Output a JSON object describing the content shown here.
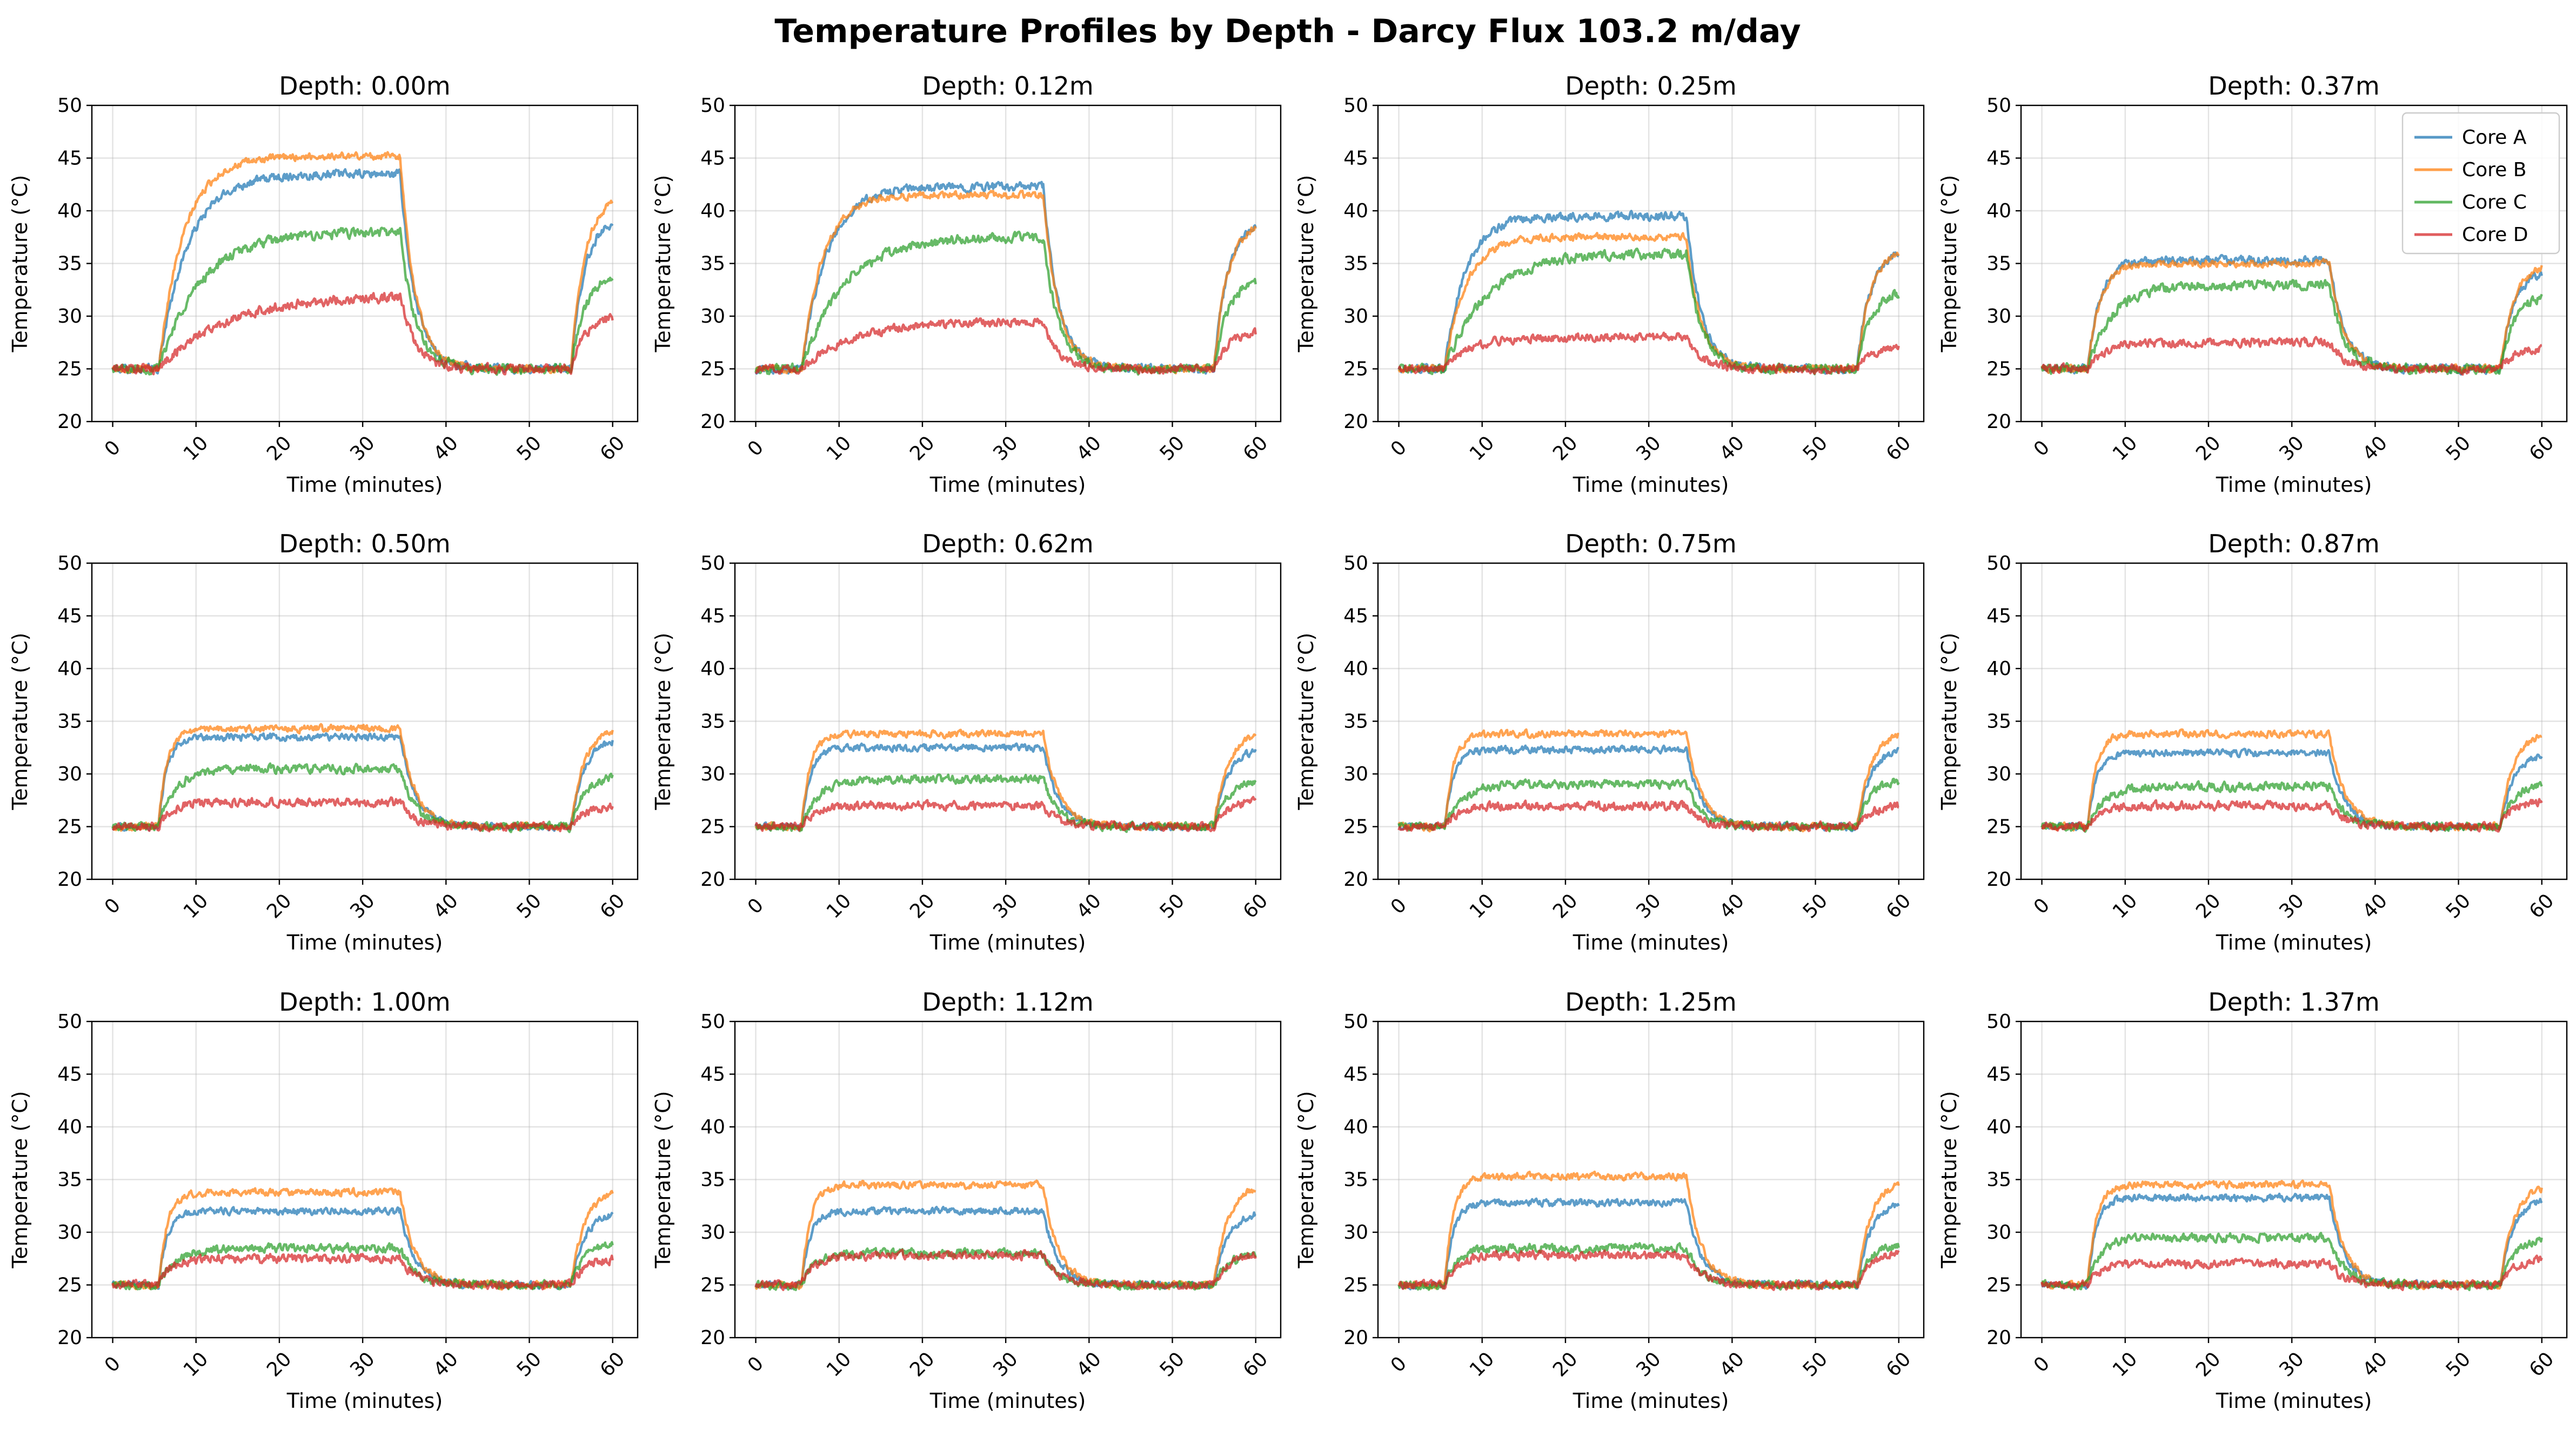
{
  "figure": {
    "title": "Temperature Profiles by Depth - Darcy Flux 103.2 m/day"
  },
  "chart_data": {
    "type": "line",
    "layout": "3x4 grid of line charts",
    "title": "Temperature Profiles by Depth - Darcy Flux 103.2 m/day",
    "xlabel": "Time (minutes)",
    "ylabel": "Temperature (°C)",
    "xlim": [
      -2.5,
      63
    ],
    "ylim": [
      20,
      50
    ],
    "xticks": [
      0,
      10,
      20,
      30,
      40,
      50,
      60
    ],
    "yticks": [
      20,
      25,
      30,
      35,
      40,
      45,
      50
    ],
    "x_tick_rotation": "45 degrees",
    "grid": true,
    "legend": {
      "position": "top-right of the fourth panel (Depth: 0.37m)",
      "entries": [
        "Core A",
        "Core B",
        "Core C",
        "Core D"
      ]
    },
    "series_colors": {
      "Core A": "#1f77b4",
      "Core B": "#ff7f0e",
      "Core C": "#2ca02c",
      "Core D": "#d62728"
    },
    "phases_minutes": {
      "baseline_end": 5.5,
      "heating_end": 34.5,
      "recovery_end": 55,
      "end": 60
    },
    "baseline_temperature": 25,
    "panels": [
      {
        "title": "Depth: 0.00m",
        "series": [
          {
            "name": "Core A",
            "plateau": 43.5,
            "tau": 3.5,
            "end": 39.5,
            "noise": 0.6
          },
          {
            "name": "Core B",
            "plateau": 45.2,
            "tau": 3.0,
            "end": 41.5,
            "noise": 0.5
          },
          {
            "name": "Core C",
            "plateau": 38.0,
            "tau": 5.0,
            "end": 34.0,
            "noise": 0.7
          },
          {
            "name": "Core D",
            "plateau": 32.0,
            "tau": 8.0,
            "end": 30.0,
            "noise": 0.7
          }
        ]
      },
      {
        "title": "Depth: 0.12m",
        "series": [
          {
            "name": "Core A",
            "plateau": 42.3,
            "tau": 3.0,
            "end": 39.0,
            "noise": 0.6
          },
          {
            "name": "Core B",
            "plateau": 41.5,
            "tau": 2.5,
            "end": 39.0,
            "noise": 0.5
          },
          {
            "name": "Core C",
            "plateau": 37.5,
            "tau": 5.0,
            "end": 33.5,
            "noise": 0.7
          },
          {
            "name": "Core D",
            "plateau": 29.5,
            "tau": 6.0,
            "end": 28.5,
            "noise": 0.6
          }
        ]
      },
      {
        "title": "Depth: 0.25m",
        "series": [
          {
            "name": "Core A",
            "plateau": 39.5,
            "tau": 2.5,
            "end": 36.5,
            "noise": 0.6
          },
          {
            "name": "Core B",
            "plateau": 37.5,
            "tau": 2.5,
            "end": 36.5,
            "noise": 0.5
          },
          {
            "name": "Core C",
            "plateau": 36.0,
            "tau": 5.0,
            "end": 32.5,
            "noise": 0.7
          },
          {
            "name": "Core D",
            "plateau": 28.0,
            "tau": 3.0,
            "end": 27.0,
            "noise": 0.6
          }
        ]
      },
      {
        "title": "Depth: 0.37m",
        "series": [
          {
            "name": "Core A",
            "plateau": 35.3,
            "tau": 1.5,
            "end": 34.5,
            "noise": 0.6
          },
          {
            "name": "Core B",
            "plateau": 35.0,
            "tau": 1.5,
            "end": 35.0,
            "noise": 0.5
          },
          {
            "name": "Core C",
            "plateau": 33.0,
            "tau": 3.0,
            "end": 32.0,
            "noise": 0.7
          },
          {
            "name": "Core D",
            "plateau": 27.5,
            "tau": 2.0,
            "end": 27.0,
            "noise": 0.6
          }
        ]
      },
      {
        "title": "Depth: 0.50m",
        "series": [
          {
            "name": "Core A",
            "plateau": 33.5,
            "tau": 1.0,
            "end": 33.5,
            "noise": 0.5
          },
          {
            "name": "Core B",
            "plateau": 34.3,
            "tau": 1.0,
            "end": 34.5,
            "noise": 0.5
          },
          {
            "name": "Core C",
            "plateau": 30.5,
            "tau": 2.0,
            "end": 30.0,
            "noise": 0.6
          },
          {
            "name": "Core D",
            "plateau": 27.3,
            "tau": 1.5,
            "end": 27.0,
            "noise": 0.6
          }
        ]
      },
      {
        "title": "Depth: 0.62m",
        "series": [
          {
            "name": "Core A",
            "plateau": 32.5,
            "tau": 1.0,
            "end": 32.5,
            "noise": 0.5
          },
          {
            "name": "Core B",
            "plateau": 33.8,
            "tau": 1.0,
            "end": 34.0,
            "noise": 0.5
          },
          {
            "name": "Core C",
            "plateau": 29.5,
            "tau": 2.0,
            "end": 29.5,
            "noise": 0.6
          },
          {
            "name": "Core D",
            "plateau": 27.0,
            "tau": 1.5,
            "end": 27.5,
            "noise": 0.6
          }
        ]
      },
      {
        "title": "Depth: 0.75m",
        "series": [
          {
            "name": "Core A",
            "plateau": 32.3,
            "tau": 1.0,
            "end": 32.5,
            "noise": 0.5
          },
          {
            "name": "Core B",
            "plateau": 33.8,
            "tau": 1.0,
            "end": 34.0,
            "noise": 0.5
          },
          {
            "name": "Core C",
            "plateau": 29.0,
            "tau": 2.0,
            "end": 29.5,
            "noise": 0.6
          },
          {
            "name": "Core D",
            "plateau": 27.0,
            "tau": 1.5,
            "end": 27.0,
            "noise": 0.6
          }
        ]
      },
      {
        "title": "Depth: 0.87m",
        "series": [
          {
            "name": "Core A",
            "plateau": 32.0,
            "tau": 1.0,
            "end": 32.0,
            "noise": 0.5
          },
          {
            "name": "Core B",
            "plateau": 33.8,
            "tau": 1.0,
            "end": 34.0,
            "noise": 0.5
          },
          {
            "name": "Core C",
            "plateau": 28.8,
            "tau": 2.0,
            "end": 29.0,
            "noise": 0.6
          },
          {
            "name": "Core D",
            "plateau": 27.0,
            "tau": 1.5,
            "end": 27.5,
            "noise": 0.6
          }
        ]
      },
      {
        "title": "Depth: 1.00m",
        "series": [
          {
            "name": "Core A",
            "plateau": 32.0,
            "tau": 1.0,
            "end": 32.0,
            "noise": 0.5
          },
          {
            "name": "Core B",
            "plateau": 33.8,
            "tau": 1.0,
            "end": 34.0,
            "noise": 0.5
          },
          {
            "name": "Core C",
            "plateau": 28.5,
            "tau": 2.0,
            "end": 29.0,
            "noise": 0.6
          },
          {
            "name": "Core D",
            "plateau": 27.5,
            "tau": 1.5,
            "end": 27.5,
            "noise": 0.6
          }
        ]
      },
      {
        "title": "Depth: 1.12m",
        "series": [
          {
            "name": "Core A",
            "plateau": 32.0,
            "tau": 1.0,
            "end": 32.0,
            "noise": 0.5
          },
          {
            "name": "Core B",
            "plateau": 34.5,
            "tau": 1.0,
            "end": 34.5,
            "noise": 0.5
          },
          {
            "name": "Core C",
            "plateau": 28.0,
            "tau": 1.5,
            "end": 28.0,
            "noise": 0.6
          },
          {
            "name": "Core D",
            "plateau": 27.8,
            "tau": 1.5,
            "end": 28.0,
            "noise": 0.6
          }
        ]
      },
      {
        "title": "Depth: 1.25m",
        "series": [
          {
            "name": "Core A",
            "plateau": 32.8,
            "tau": 1.0,
            "end": 33.0,
            "noise": 0.5
          },
          {
            "name": "Core B",
            "plateau": 35.3,
            "tau": 1.0,
            "end": 35.0,
            "noise": 0.5
          },
          {
            "name": "Core C",
            "plateau": 28.5,
            "tau": 1.5,
            "end": 29.0,
            "noise": 0.6
          },
          {
            "name": "Core D",
            "plateau": 27.8,
            "tau": 1.5,
            "end": 28.0,
            "noise": 0.6
          }
        ]
      },
      {
        "title": "Depth: 1.37m",
        "series": [
          {
            "name": "Core A",
            "plateau": 33.3,
            "tau": 1.0,
            "end": 33.5,
            "noise": 0.5
          },
          {
            "name": "Core B",
            "plateau": 34.5,
            "tau": 1.0,
            "end": 34.5,
            "noise": 0.5
          },
          {
            "name": "Core C",
            "plateau": 29.5,
            "tau": 1.5,
            "end": 29.5,
            "noise": 0.6
          },
          {
            "name": "Core D",
            "plateau": 27.0,
            "tau": 1.5,
            "end": 27.5,
            "noise": 0.6
          }
        ]
      }
    ]
  }
}
